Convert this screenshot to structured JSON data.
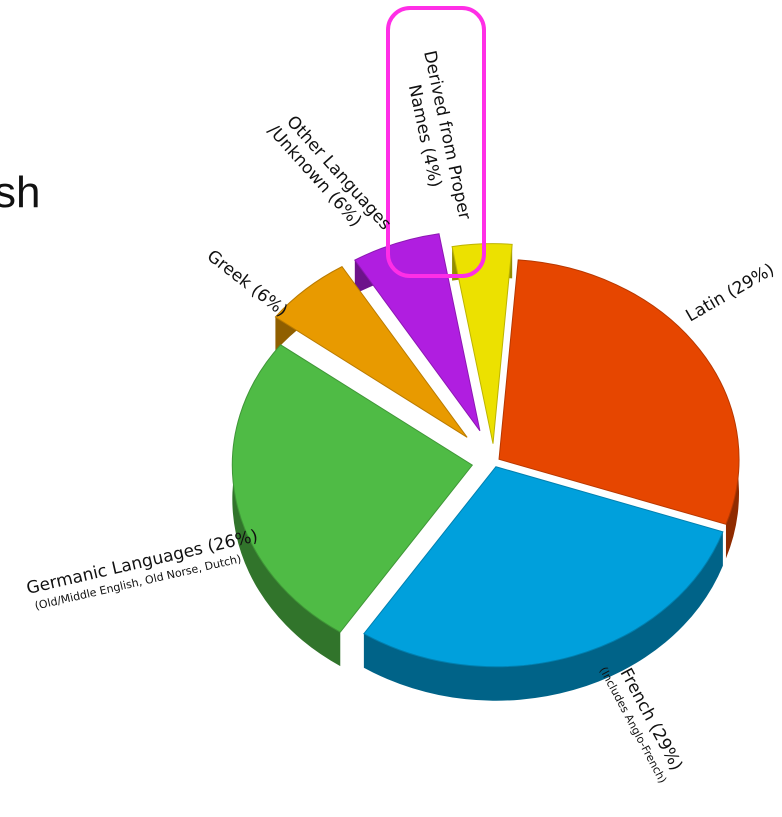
{
  "cut_title": "sh",
  "colors": {
    "latin": "#e64600",
    "french": "#00a0dc",
    "germanic": "#4fbb45",
    "greek": "#e89a00",
    "other": "#b01ee0",
    "proper": "#ece100",
    "highlight": "#ff2ee6"
  },
  "chart_data": {
    "type": "pie",
    "title": "",
    "series": [
      {
        "label": "Latin (29%)",
        "value": 29
      },
      {
        "label": "French (29%)",
        "note": "(Includes Anglo-French)",
        "value": 29
      },
      {
        "label": "Germanic Languages (26%)",
        "note": "(Old/Middle English, Old Norse, Dutch)",
        "value": 26
      },
      {
        "label": "Greek (6%)",
        "value": 6
      },
      {
        "label": "Other Languages /Unknown (6%)",
        "value": 6
      },
      {
        "label": "Derived from Proper Names (4%)",
        "value": 4
      }
    ],
    "legend": "none",
    "style": "3d-exploded",
    "highlighted": "Derived from Proper Names (4%)",
    "annotation": "magenta rounded box around Derived from Proper Names (4%)"
  }
}
